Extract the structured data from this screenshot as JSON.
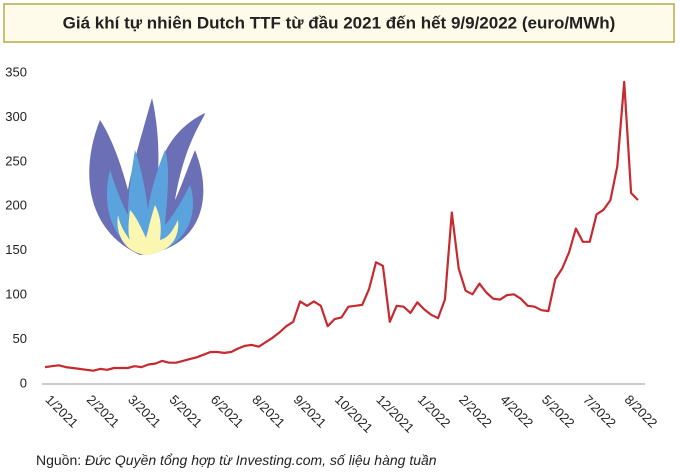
{
  "chart_data": {
    "type": "line",
    "title": "Giá khí tự nhiên Dutch TTF từ đầu 2021 đến hết 9/9/2022 (euro/MWh)",
    "source_label": "Nguồn:",
    "source": "Đức Quyền tổng hợp từ Investing.com, số liệu hàng tuần",
    "categories": [
      "1/2021",
      null,
      null,
      null,
      null,
      null,
      "2/2021",
      null,
      null,
      null,
      null,
      null,
      "3/2021",
      null,
      null,
      null,
      null,
      null,
      "5/2021",
      null,
      null,
      null,
      null,
      null,
      "6/2021",
      null,
      null,
      null,
      null,
      null,
      "8/2021",
      null,
      null,
      null,
      null,
      null,
      "9/2021",
      null,
      null,
      null,
      null,
      null,
      "10/2021",
      null,
      null,
      null,
      null,
      null,
      "12/2021",
      null,
      null,
      null,
      null,
      null,
      "1/2022",
      null,
      null,
      null,
      null,
      null,
      "2/2022",
      null,
      null,
      null,
      null,
      null,
      "4/2022",
      null,
      null,
      null,
      null,
      null,
      "5/2022",
      null,
      null,
      null,
      null,
      null,
      "7/2022",
      null,
      null,
      null,
      null,
      null,
      "8/2022",
      null,
      null
    ],
    "series": [
      {
        "color": "#c62a2f",
        "values": [
          19,
          20,
          21,
          19,
          18,
          17,
          16,
          15,
          17,
          16,
          18,
          18,
          18,
          20,
          19,
          22,
          23,
          26,
          24,
          24,
          26,
          28,
          30,
          33,
          36,
          36,
          35,
          36,
          40,
          43,
          44,
          42,
          47,
          52,
          58,
          65,
          70,
          93,
          88,
          93,
          88,
          65,
          73,
          75,
          87,
          88,
          89,
          107,
          137,
          133,
          70,
          88,
          87,
          80,
          92,
          84,
          78,
          74,
          95,
          193,
          130,
          105,
          101,
          113,
          103,
          96,
          95,
          100,
          101,
          96,
          88,
          87,
          83,
          82,
          118,
          130,
          148,
          175,
          160,
          160,
          191,
          196,
          207,
          245,
          340,
          215,
          207
        ]
      }
    ],
    "ylim": [
      0,
      350
    ],
    "yticks": [
      0,
      50,
      100,
      150,
      200,
      250,
      300,
      350
    ],
    "grid": false
  }
}
